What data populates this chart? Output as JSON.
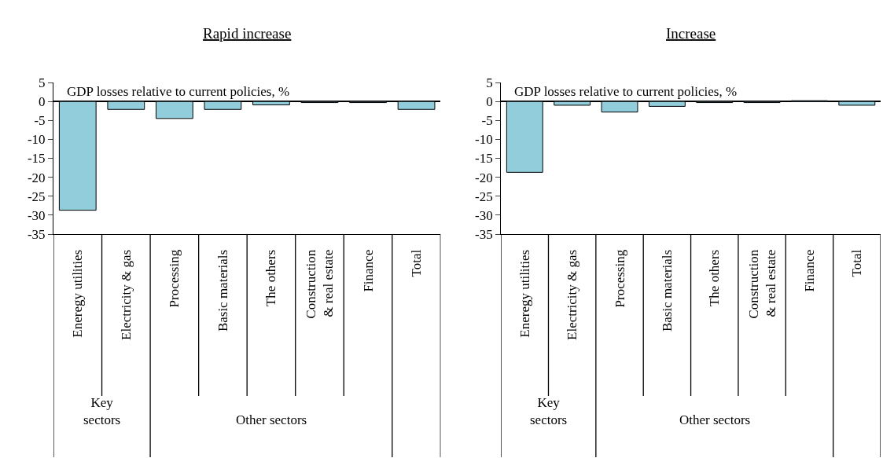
{
  "chart_data": [
    {
      "type": "bar",
      "title": "Rapid increase",
      "categories": [
        "Eneregy utilities",
        "Electricity & gas",
        "Processing",
        "Basic materials",
        "The others",
        "Construction\n& real estate",
        "Finance",
        "Total"
      ],
      "values": [
        -28.7,
        -2.1,
        -4.5,
        -2.1,
        -0.9,
        -0.3,
        -0.3,
        -2.1
      ],
      "color": "#92cddc",
      "ylim": [
        -35,
        5
      ],
      "yticks": [
        -35,
        -30,
        -25,
        -20,
        -15,
        -10,
        -5,
        0,
        5
      ],
      "annotations": [
        "GDP losses relative to current policies, %",
        "Key\nsectors",
        "Other sectors"
      ]
    },
    {
      "type": "bar",
      "title": "Increase",
      "categories": [
        "Eneregy utilities",
        "Electricity & gas",
        "Processing",
        "Basic materials",
        "The others",
        "Construction\n& real estate",
        "Finance",
        "Total"
      ],
      "values": [
        -18.7,
        -1.0,
        -2.8,
        -1.3,
        -0.3,
        -0.3,
        0.2,
        -1.0
      ],
      "color": "#92cddc",
      "ylim": [
        -35,
        5
      ],
      "yticks": [
        -35,
        -30,
        -25,
        -20,
        -15,
        -10,
        -5,
        0,
        5
      ],
      "annotations": [
        "GDP losses relative to current policies, %",
        "Key\nsectors",
        "Other sectors"
      ]
    }
  ]
}
